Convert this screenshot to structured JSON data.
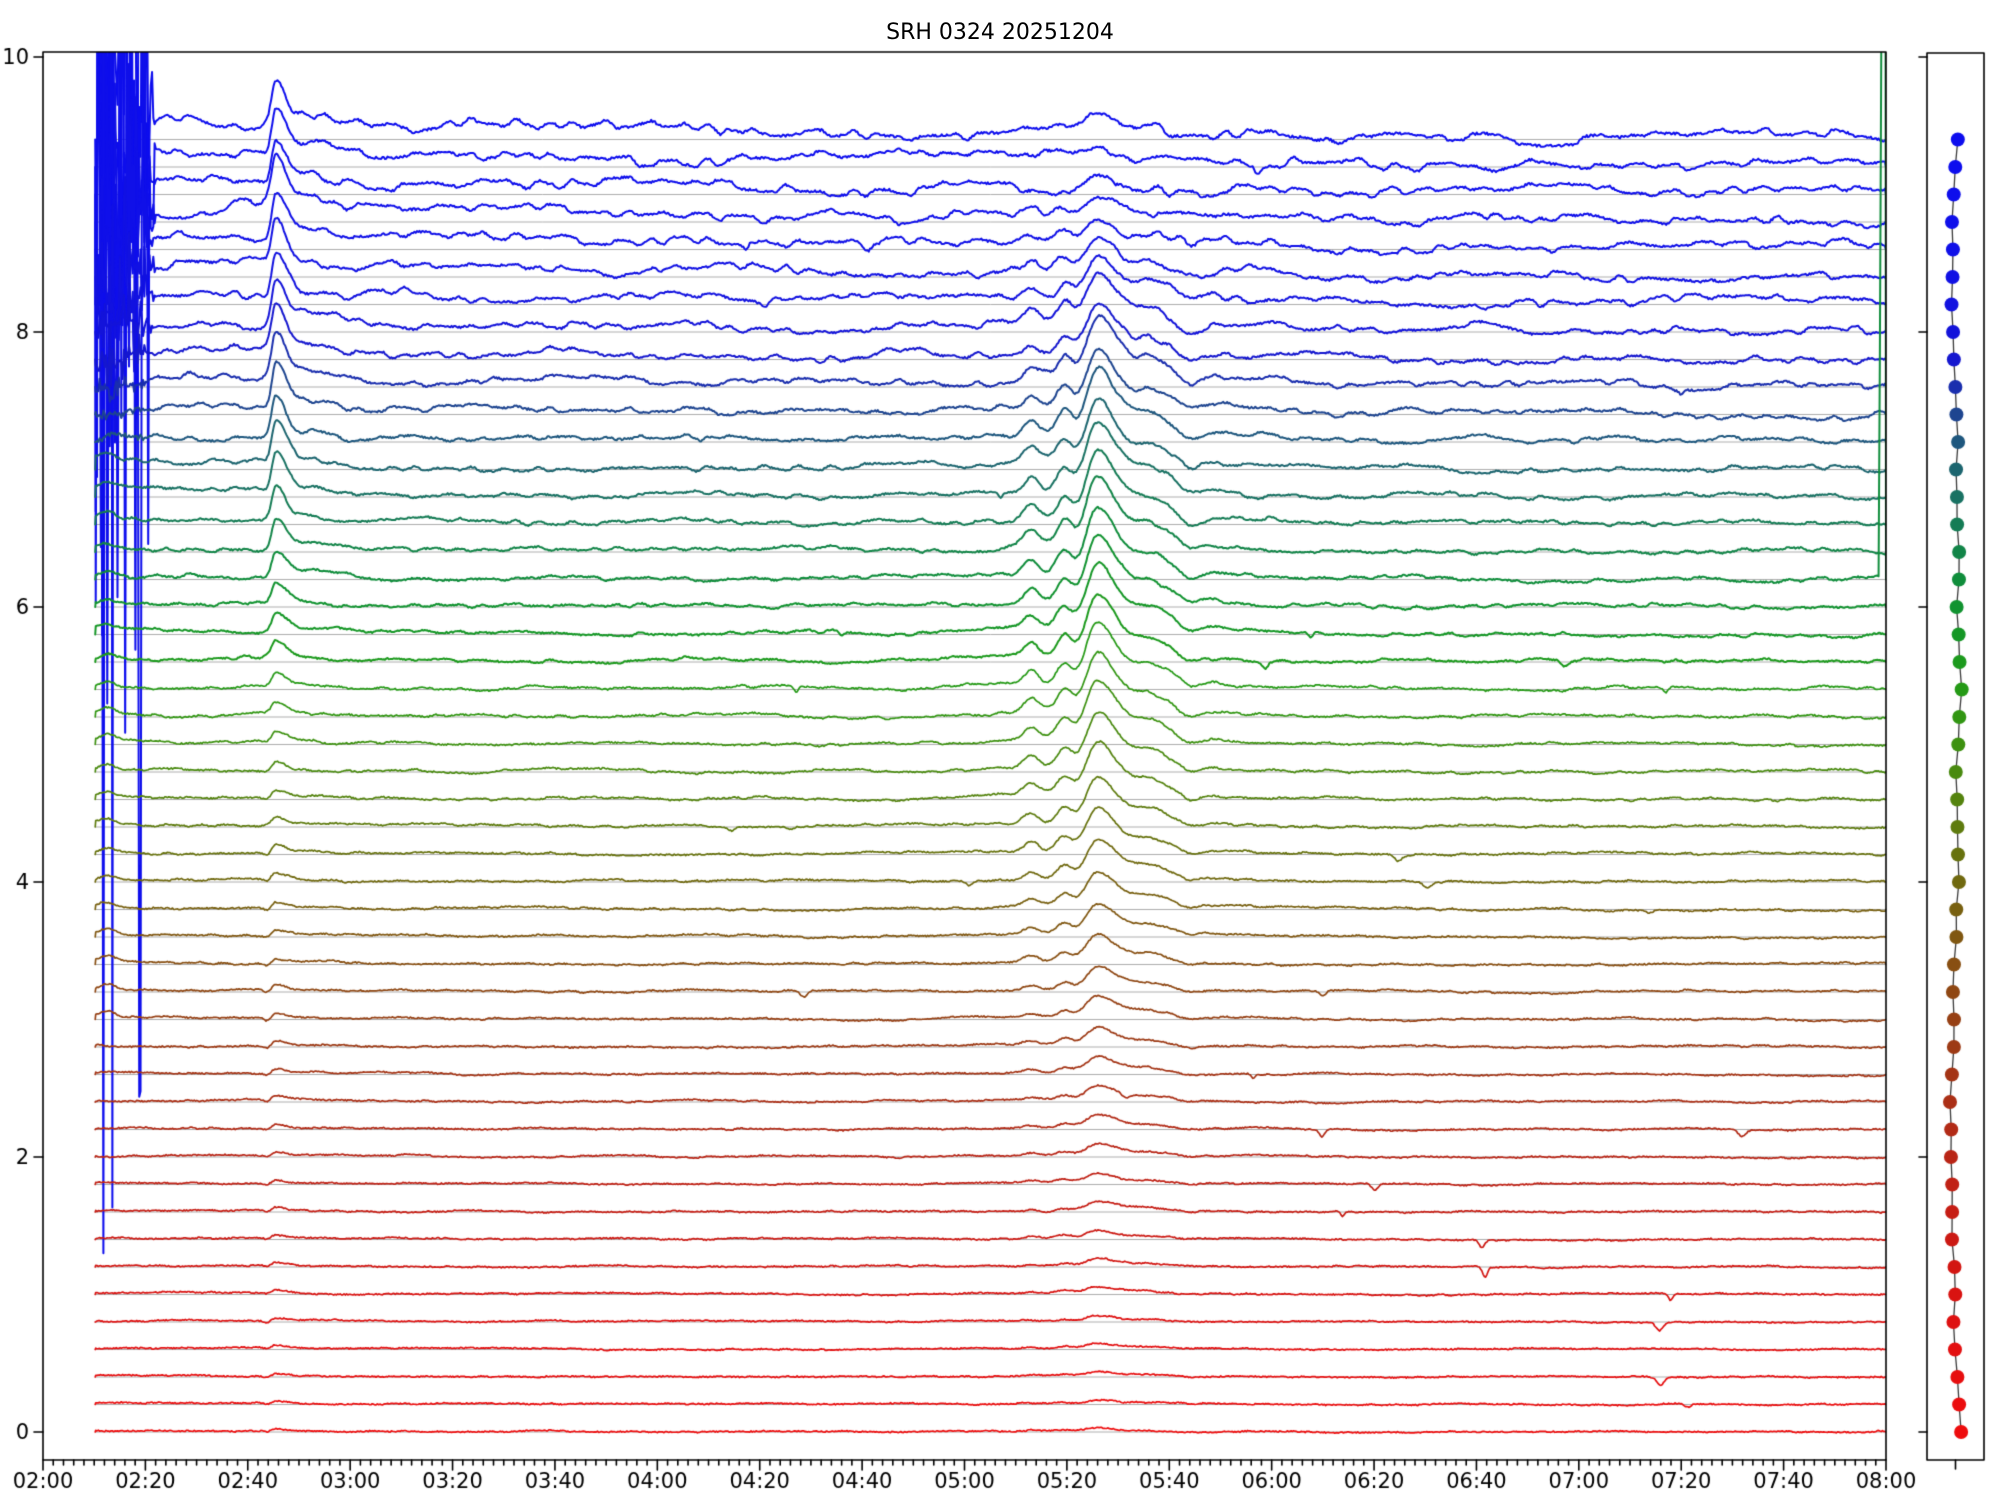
{
  "title": "SRH 0324 20251204",
  "chart_data": {
    "type": "line",
    "title": "SRH 0324 20251204",
    "description": "Multi-frequency radio flux time profiles, 48 stacked traces colored blue (top) to red (bottom), each with a gray zero baseline; side strip shows one dot per trace at its baseline level",
    "x_axis": {
      "start_label": "02:00",
      "end_label": "08:00",
      "major_tick_labels": [
        "02:00",
        "02:20",
        "02:40",
        "03:00",
        "03:20",
        "03:40",
        "04:00",
        "04:20",
        "04:40",
        "05:00",
        "05:20",
        "05:40",
        "06:00",
        "06:20",
        "06:40",
        "07:00",
        "07:20",
        "07:40",
        "08:00"
      ],
      "major_tick_step_min": 20,
      "minor_tick_step_min": 2,
      "range_minutes": [
        0,
        360
      ]
    },
    "y_axis": {
      "ticks": [
        0,
        2,
        4,
        6,
        8,
        10
      ],
      "lim": [
        -0.2,
        10.05
      ]
    },
    "data_window": {
      "start": "02:10",
      "end": "08:00"
    },
    "baseline_color": "#adadad",
    "events": [
      {
        "name": "startup-noise",
        "time_range": [
          "02:10",
          "02:18"
        ],
        "affected": "top ~10 blue traces",
        "note": "violent off-scale oscillations clipped at plot top"
      },
      {
        "name": "impulsive-spike",
        "time": "02:45",
        "note": "sharp narrow spike, strongest on upper blue traces, fading toward lower red traces"
      },
      {
        "name": "main-burst",
        "peak_time": "05:26",
        "time_range": [
          "05:10",
          "06:10"
        ],
        "precursor_bumps": [
          "05:13",
          "05:20"
        ],
        "shoulder": "05:36",
        "note": "gradual rise and fall, strongest on middle teal/green traces"
      },
      {
        "name": "end-of-data-spike",
        "time": "08:00",
        "trace_index": 16,
        "note": "vertical green line at right edge where one green trace jumps off-scale at the final sample"
      }
    ],
    "traces": {
      "count": 48,
      "offsets": [
        9.4,
        9.2,
        9.0,
        8.8,
        8.6,
        8.4,
        8.2,
        8.0,
        7.8,
        7.6,
        7.4,
        7.2,
        7.0,
        6.8,
        6.6,
        6.4,
        6.2,
        6.0,
        5.8,
        5.6,
        5.4,
        5.2,
        5.0,
        4.8,
        4.6,
        4.4,
        4.2,
        4.0,
        3.8,
        3.6,
        3.4,
        3.2,
        3.0,
        2.8,
        2.6,
        2.4,
        2.2,
        2.0,
        1.8,
        1.6,
        1.4,
        1.2,
        1.0,
        0.8,
        0.6,
        0.4,
        0.2,
        0.0
      ],
      "colors": [
        "#0d0dee",
        "#0d0dee",
        "#0e0eec",
        "#0f0fea",
        "#1010e8",
        "#1111e4",
        "#1212e0",
        "#1313da",
        "#1517cf",
        "#1a2eae",
        "#1e4590",
        "#1e577e",
        "#1c656f",
        "#197263",
        "#157c55",
        "#128548",
        "#0f8d3b",
        "#119330",
        "#159726",
        "#1c9a1d",
        "#259a16",
        "#319612",
        "#3d9110",
        "#498a0f",
        "#54830e",
        "#5e7b0e",
        "#67720e",
        "#70690f",
        "#786010",
        "#805711",
        "#884f12",
        "#8f4713",
        "#964014",
        "#9d3a15",
        "#a43415",
        "#ab2f16",
        "#b22a16",
        "#b92516",
        "#c02115",
        "#c61d14",
        "#cc1913",
        "#d31612",
        "#d91311",
        "#de1111",
        "#e30f10",
        "#e70e0f",
        "#eb0d0e",
        "#ee0c0d"
      ],
      "burst_amplitudes": [
        0.07,
        0.08,
        0.1,
        0.14,
        0.2,
        0.26,
        0.31,
        0.35,
        0.38,
        0.41,
        0.43,
        0.45,
        0.46,
        0.47,
        0.47,
        0.47,
        0.46,
        0.46,
        0.45,
        0.44,
        0.43,
        0.42,
        0.4,
        0.38,
        0.36,
        0.33,
        0.3,
        0.27,
        0.24,
        0.21,
        0.19,
        0.16,
        0.14,
        0.13,
        0.11,
        0.1,
        0.09,
        0.08,
        0.07,
        0.06,
        0.055,
        0.05,
        0.045,
        0.04,
        0.035,
        0.03,
        0.028,
        0.025
      ],
      "spike_amplitudes": [
        0.33,
        0.33,
        0.33,
        0.34,
        0.33,
        0.32,
        0.33,
        0.32,
        0.33,
        0.32,
        0.31,
        0.3,
        0.29,
        0.27,
        0.24,
        0.21,
        0.18,
        0.155,
        0.135,
        0.115,
        0.1,
        0.09,
        0.08,
        0.07,
        0.065,
        0.06,
        0.055,
        0.05,
        0.045,
        0.04,
        0.038,
        0.036,
        0.034,
        0.032,
        0.03,
        0.028,
        0.027,
        0.026,
        0.025,
        0.024,
        0.023,
        0.022,
        0.021,
        0.02,
        0.02,
        0.019,
        0.018,
        0.018
      ],
      "noise_amplitudes": [
        0.04,
        0.038,
        0.036,
        0.034,
        0.032,
        0.031,
        0.03,
        0.029,
        0.028,
        0.026,
        0.024,
        0.022,
        0.021,
        0.02,
        0.018,
        0.017,
        0.016,
        0.015,
        0.014,
        0.013,
        0.012,
        0.012,
        0.011,
        0.011,
        0.01,
        0.01,
        0.009,
        0.009,
        0.008,
        0.008,
        0.008,
        0.007,
        0.007,
        0.007,
        0.006,
        0.006,
        0.006,
        0.006,
        0.005,
        0.005,
        0.005,
        0.005,
        0.005,
        0.004,
        0.004,
        0.004,
        0.004,
        0.004
      ],
      "startup_noise_amplitudes": [
        3.6,
        3.6,
        3.2,
        1.1,
        0.75,
        0.5,
        0.28,
        0.16,
        0.09,
        0.05,
        0.02,
        0.01,
        0,
        0,
        0,
        0,
        0,
        0,
        0,
        0,
        0,
        0,
        0,
        0,
        0,
        0,
        0,
        0,
        0,
        0,
        0,
        0,
        0,
        0,
        0,
        0,
        0,
        0,
        0,
        0,
        0,
        0,
        0,
        0,
        0,
        0,
        0,
        0
      ],
      "mean_level_offsets": [
        0.17,
        0.16,
        0.15,
        0.14,
        0.13,
        0.12,
        0.11,
        0.1,
        0.09,
        0.08,
        0.07,
        0.06,
        0.05,
        0.045,
        0.04,
        0.035,
        0.03,
        0.028,
        0.026,
        0.024,
        0.022,
        0.02,
        0.02,
        0.018,
        0.018,
        0.016,
        0.016,
        0.015,
        0.015,
        0.014,
        0.014,
        0.013,
        0.013,
        0.012,
        0.012,
        0.012,
        0.011,
        0.011,
        0.011,
        0.01,
        0.01,
        0.01,
        0.01,
        0.01,
        0.01,
        0.01,
        0.01,
        0.01
      ]
    },
    "side_panel": {
      "ticks": [
        0,
        2,
        4,
        6,
        8,
        10
      ],
      "note": "one dot per trace, colored like the trace, placed at the trace baseline level and joined by a thin dark line",
      "line_color": "#3a3a3a"
    }
  }
}
